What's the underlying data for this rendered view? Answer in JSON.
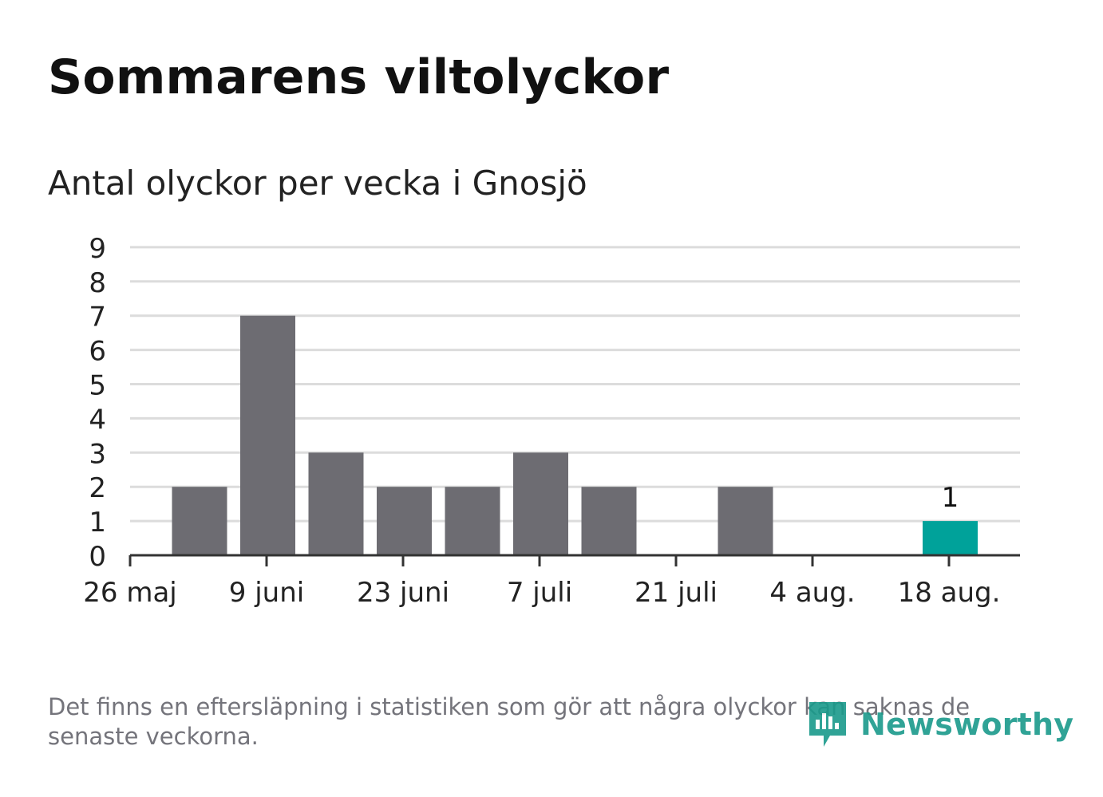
{
  "title": "Sommarens viltolyckor",
  "subtitle": "Antal olyckor per vecka i Gnosjö",
  "footnote": "Det finns en eftersläpning i statistiken som gör att några olyckor kan saknas de senaste veckorna.",
  "logo": {
    "text": "Newsworthy",
    "icon": "newsworthy-logo-icon"
  },
  "colors": {
    "bar": "#6d6c72",
    "highlight": "#00a29a",
    "grid": "#dcdcdc",
    "axis": "#333333",
    "text": "#222222"
  },
  "chart_data": {
    "type": "bar",
    "title": "Sommarens viltolyckor",
    "subtitle": "Antal olyckor per vecka i Gnosjö",
    "xlabel": "",
    "ylabel": "",
    "ylim": [
      0,
      9
    ],
    "yticks": [
      "0",
      "1",
      "2",
      "3",
      "4",
      "5",
      "6",
      "7",
      "8",
      "9"
    ],
    "xticks": [
      "26 maj",
      "9 juni",
      "23 juni",
      "7 juli",
      "21 juli",
      "4 aug.",
      "18 aug."
    ],
    "values": [
      2,
      7,
      3,
      2,
      2,
      3,
      2,
      0,
      2,
      0,
      0,
      1
    ],
    "highlight_index": 11,
    "data_labels": [
      {
        "index": 11,
        "text": "1"
      }
    ],
    "grid": true,
    "legend": "none"
  }
}
